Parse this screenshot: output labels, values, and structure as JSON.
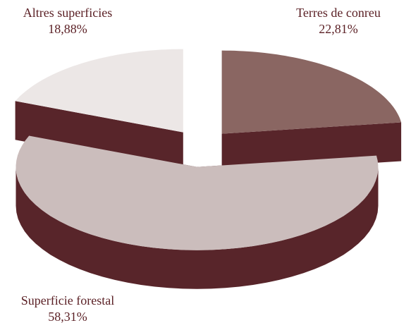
{
  "chart_data": {
    "type": "pie3d",
    "categories": [
      "Terres de conreu",
      "Superficie forestal",
      "Altres superficies"
    ],
    "values": [
      22.81,
      58.31,
      18.88
    ],
    "value_labels": [
      "22,81%",
      "58,31%",
      "18,88%"
    ],
    "colors": [
      "#8a6662",
      "#cbbdbc",
      "#ece7e6"
    ],
    "side_color": "#58252a"
  }
}
